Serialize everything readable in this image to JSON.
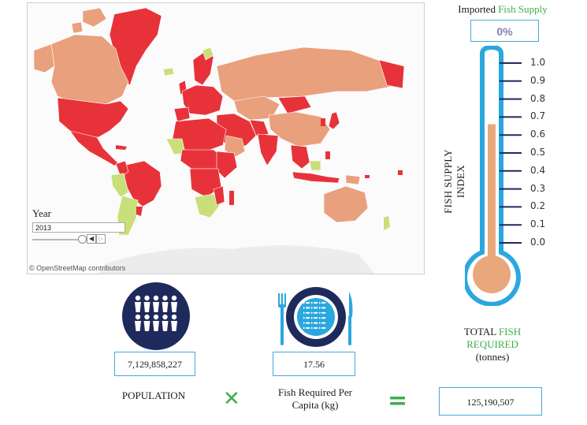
{
  "map": {
    "year_label": "Year",
    "year_value": "2013",
    "step_prev": "◀",
    "step_next": "▷",
    "attribution": "© OpenStreetMap contributors"
  },
  "thermometer": {
    "title_prefix": "Imported ",
    "title_highlight": "Fish Supply",
    "percent": "0%",
    "axis_label": "FISH SUPPLY INDEX",
    "ticks": [
      "1.0",
      "0.9",
      "0.8",
      "0.7",
      "0.6",
      "0.5",
      "0.4",
      "0.3",
      "0.2",
      "0.1",
      "0.0"
    ],
    "fill_level": 0.66,
    "colors": {
      "tube": "#2ba7df",
      "fill": "#e8a87c",
      "text": "#1f2a5c"
    }
  },
  "population": {
    "value": "7,129,858,227",
    "label": "POPULATION"
  },
  "operator_times": "✕",
  "per_capita": {
    "value": "17.56",
    "label_line1": "Fish Required Per",
    "label_line2": "Capita (kg)"
  },
  "operator_equals": "=",
  "total": {
    "title_prefix": "TOTAL ",
    "title_fish": "FISH",
    "title_required": "REQUIRED",
    "unit": "(tonnes)",
    "value": "125,190,507"
  },
  "colors": {
    "deficit_red": "#e8323a",
    "salmon": "#e9a07d",
    "light_green": "#c9df7a",
    "navy": "#1f2a5c",
    "accent_green": "#3fae49",
    "box_blue": "#45a9d9"
  }
}
